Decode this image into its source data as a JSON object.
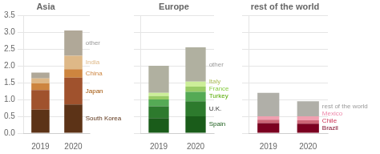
{
  "chart_data": [
    {
      "type": "bar",
      "title": "Asia",
      "stacked": true,
      "grid": true,
      "categories": [
        "2019",
        "2020"
      ],
      "series": [
        {
          "name": "South Korea",
          "color": "#5c3317",
          "values": [
            0.7,
            0.85
          ]
        },
        {
          "name": "Japan",
          "color": "#a0522d",
          "values": [
            0.58,
            0.8
          ]
        },
        {
          "name": "China",
          "color": "#cd853f",
          "values": [
            0.2,
            0.25
          ]
        },
        {
          "name": "India",
          "color": "#deb887",
          "values": [
            0.15,
            0.4
          ]
        },
        {
          "name": "other",
          "color": "#b0a898",
          "values": [
            0.17,
            0.75
          ]
        }
      ],
      "annotations": [
        {
          "text": "South Korea",
          "color": "#5c3317",
          "category": "2020"
        },
        {
          "text": "Japan",
          "color": "#a05000",
          "category": "2020"
        },
        {
          "text": "China",
          "color": "#cd853f",
          "category": "2020"
        },
        {
          "text": "India",
          "color": "#deb887",
          "category": "2020"
        },
        {
          "text": "other",
          "color": "#999999",
          "category": "2020"
        }
      ],
      "ylim": [
        0,
        3.5
      ],
      "yticks": [
        {
          "value": 0,
          "label": "0.0"
        },
        0.5,
        {
          "value": 1,
          "label": "1.0"
        },
        1.5,
        {
          "value": 2,
          "label": "2.0"
        },
        2.5,
        {
          "value": 3,
          "label": "3.0"
        },
        3.5
      ]
    },
    {
      "type": "bar",
      "title": "Europe",
      "stacked": true,
      "grid": true,
      "tick_labels": "x",
      "categories": [
        "2019",
        "2020"
      ],
      "series": [
        {
          "name": "Spain",
          "color": "#1a5c1a",
          "values": [
            0.45,
            0.5
          ]
        },
        {
          "name": "U.K.",
          "color": "#2d7a2d",
          "values": [
            0.35,
            0.45
          ]
        },
        {
          "name": "Turkey",
          "color": "#55aa55",
          "values": [
            0.2,
            0.28
          ]
        },
        {
          "name": "France",
          "color": "#99cc66",
          "values": [
            0.1,
            0.15
          ]
        },
        {
          "name": "Italy",
          "color": "#ccee99",
          "values": [
            0.1,
            0.15
          ]
        },
        {
          "name": "other",
          "color": "#b0b0a0",
          "values": [
            0.8,
            1.02
          ]
        }
      ],
      "annotations": [
        {
          "text": "Spain",
          "color": "#1a5c1a",
          "category": "2020"
        },
        {
          "text": "U.K.",
          "color": "#333333",
          "category": "2020"
        },
        {
          "text": "Turkey",
          "color": "#55aa00",
          "category": "2020"
        },
        {
          "text": "France",
          "color": "#88cc44",
          "category": "2020"
        },
        {
          "text": "Italy",
          "color": "#aabb55",
          "category": "2020"
        },
        {
          "text": "other",
          "color": "#999999",
          "category": "2020"
        }
      ],
      "ylim": [
        0,
        3.5
      ],
      "yticks": [
        0,
        0.5,
        1,
        1.5,
        2,
        2.5,
        3,
        3.5
      ]
    },
    {
      "type": "bar",
      "title": "rest of the world",
      "stacked": true,
      "grid": true,
      "tick_labels": "x",
      "categories": [
        "2019",
        "2020"
      ],
      "series": [
        {
          "name": "Brazil",
          "color": "#7a0020",
          "values": [
            0.3,
            0.28
          ]
        },
        {
          "name": "Chile",
          "color": "#cc6677",
          "values": [
            0.1,
            0.1
          ]
        },
        {
          "name": "Mexico",
          "color": "#f0a0b0",
          "values": [
            0.1,
            0.12
          ]
        },
        {
          "name": "rest of the world",
          "color": "#b0afa8",
          "values": [
            0.7,
            0.45
          ]
        }
      ],
      "annotations": [
        {
          "text": "Brazil",
          "color": "#7a0020",
          "category": "2020"
        },
        {
          "text": "Chile",
          "color": "#cc3355",
          "category": "2020"
        },
        {
          "text": "Mexico",
          "color": "#ee88aa",
          "category": "2020"
        },
        {
          "text": "rest of the world",
          "color": "#999999",
          "category": "2020"
        }
      ],
      "ylim": [
        0,
        3.5
      ],
      "yticks": [
        0,
        0.5,
        1,
        1.5,
        2,
        2.5,
        3,
        3.5
      ]
    }
  ]
}
